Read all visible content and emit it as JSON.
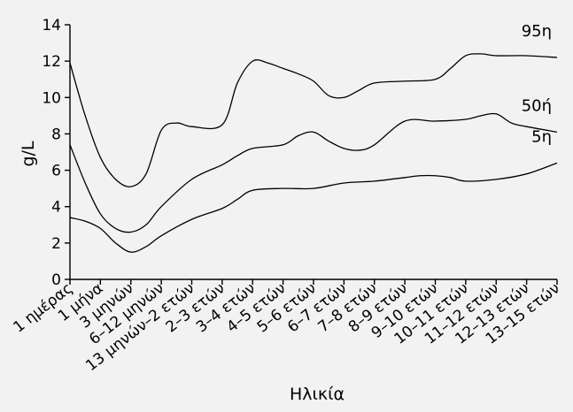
{
  "chart_data": {
    "type": "line",
    "xlabel": "Ηλικία",
    "ylabel": "g/L",
    "ylim": [
      0,
      14
    ],
    "yticks": [
      0,
      2,
      4,
      6,
      8,
      10,
      12,
      14
    ],
    "grid": false,
    "categories": [
      "1 ημέρας",
      "1 μήνα",
      "3 μηνών",
      "6–12 μηνών",
      "13 μηνών–2 ετών",
      "2–3 ετών",
      "3–4 ετών",
      "4–5 ετών",
      "5–6 ετών",
      "6–7 ετών",
      "7–8 ετών",
      "8–9 ετών",
      "9–10 ετών",
      "10–11 ετών",
      "11–12 ετών",
      "12–13 ετών",
      "13–15 ετών"
    ],
    "series": [
      {
        "name": "95η",
        "points": [
          [
            0,
            11.9
          ],
          [
            0.5,
            9.0
          ],
          [
            1.0,
            6.7
          ],
          [
            1.5,
            5.5
          ],
          [
            2.0,
            5.1
          ],
          [
            2.5,
            5.8
          ],
          [
            3.0,
            8.2
          ],
          [
            3.5,
            8.6
          ],
          [
            4.0,
            8.4
          ],
          [
            5.0,
            8.5
          ],
          [
            5.5,
            10.8
          ],
          [
            6.0,
            12.0
          ],
          [
            6.5,
            11.9
          ],
          [
            7.0,
            11.6
          ],
          [
            7.5,
            11.3
          ],
          [
            8.0,
            10.9
          ],
          [
            8.5,
            10.1
          ],
          [
            9.0,
            10.0
          ],
          [
            9.5,
            10.4
          ],
          [
            10.0,
            10.8
          ],
          [
            11.0,
            10.9
          ],
          [
            12.0,
            11.0
          ],
          [
            12.5,
            11.6
          ],
          [
            13.0,
            12.3
          ],
          [
            13.5,
            12.4
          ],
          [
            14.0,
            12.3
          ],
          [
            15.0,
            12.3
          ],
          [
            16.0,
            12.2
          ]
        ]
      },
      {
        "name": "50ή",
        "points": [
          [
            0,
            7.4
          ],
          [
            0.5,
            5.3
          ],
          [
            1.0,
            3.6
          ],
          [
            1.5,
            2.8
          ],
          [
            2.0,
            2.6
          ],
          [
            2.5,
            3.0
          ],
          [
            3.0,
            4.0
          ],
          [
            4.0,
            5.5
          ],
          [
            5.0,
            6.3
          ],
          [
            5.5,
            6.8
          ],
          [
            6.0,
            7.2
          ],
          [
            7.0,
            7.4
          ],
          [
            7.5,
            7.9
          ],
          [
            8.0,
            8.1
          ],
          [
            8.5,
            7.6
          ],
          [
            9.0,
            7.2
          ],
          [
            9.5,
            7.1
          ],
          [
            10.0,
            7.4
          ],
          [
            11.0,
            8.7
          ],
          [
            12.0,
            8.7
          ],
          [
            13.0,
            8.8
          ],
          [
            13.5,
            9.0
          ],
          [
            14.0,
            9.1
          ],
          [
            14.5,
            8.6
          ],
          [
            15.0,
            8.4
          ],
          [
            16.0,
            8.1
          ]
        ]
      },
      {
        "name": "5η",
        "points": [
          [
            0,
            3.4
          ],
          [
            0.5,
            3.2
          ],
          [
            1.0,
            2.8
          ],
          [
            1.5,
            2.0
          ],
          [
            2.0,
            1.5
          ],
          [
            2.5,
            1.8
          ],
          [
            3.0,
            2.4
          ],
          [
            4.0,
            3.3
          ],
          [
            5.0,
            3.9
          ],
          [
            5.5,
            4.4
          ],
          [
            6.0,
            4.9
          ],
          [
            7.0,
            5.0
          ],
          [
            8.0,
            5.0
          ],
          [
            9.0,
            5.3
          ],
          [
            10.0,
            5.4
          ],
          [
            11.0,
            5.6
          ],
          [
            11.5,
            5.7
          ],
          [
            12.0,
            5.7
          ],
          [
            12.5,
            5.6
          ],
          [
            13.0,
            5.4
          ],
          [
            14.0,
            5.5
          ],
          [
            15.0,
            5.8
          ],
          [
            16.0,
            6.4
          ]
        ]
      }
    ]
  }
}
